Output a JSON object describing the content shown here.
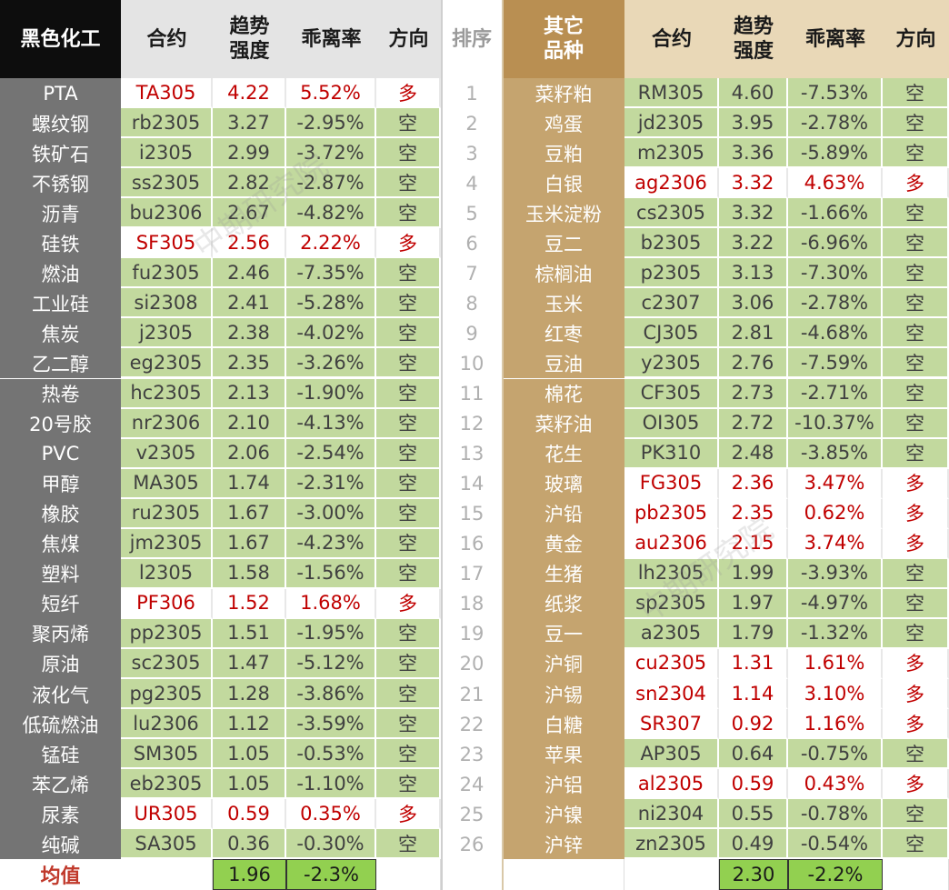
{
  "headers": {
    "left": [
      "黑色化工",
      "合约",
      "趋势\n强度",
      "乖离率",
      "方向"
    ],
    "rank": "排序",
    "right": [
      "其它\n品种",
      "合约",
      "趋势\n强度",
      "乖离率",
      "方向"
    ]
  },
  "left_rows": [
    {
      "name": "PTA",
      "contract": "TA305",
      "strength": "4.22",
      "dev": "5.52%",
      "dir": "多"
    },
    {
      "name": "螺纹钢",
      "contract": "rb2305",
      "strength": "3.27",
      "dev": "-2.95%",
      "dir": "空"
    },
    {
      "name": "铁矿石",
      "contract": "i2305",
      "strength": "2.99",
      "dev": "-3.72%",
      "dir": "空"
    },
    {
      "name": "不锈钢",
      "contract": "ss2305",
      "strength": "2.82",
      "dev": "-2.87%",
      "dir": "空"
    },
    {
      "name": "沥青",
      "contract": "bu2306",
      "strength": "2.67",
      "dev": "-4.82%",
      "dir": "空"
    },
    {
      "name": "硅铁",
      "contract": "SF305",
      "strength": "2.56",
      "dev": "2.22%",
      "dir": "多"
    },
    {
      "name": "燃油",
      "contract": "fu2305",
      "strength": "2.46",
      "dev": "-7.35%",
      "dir": "空"
    },
    {
      "name": "工业硅",
      "contract": "si2308",
      "strength": "2.41",
      "dev": "-5.28%",
      "dir": "空"
    },
    {
      "name": "焦炭",
      "contract": "j2305",
      "strength": "2.38",
      "dev": "-4.02%",
      "dir": "空"
    },
    {
      "name": "乙二醇",
      "contract": "eg2305",
      "strength": "2.35",
      "dev": "-3.26%",
      "dir": "空"
    },
    {
      "name": "热卷",
      "contract": "hc2305",
      "strength": "2.13",
      "dev": "-1.90%",
      "dir": "空"
    },
    {
      "name": "20号胶",
      "contract": "nr2306",
      "strength": "2.10",
      "dev": "-4.13%",
      "dir": "空"
    },
    {
      "name": "PVC",
      "contract": "v2305",
      "strength": "2.06",
      "dev": "-2.54%",
      "dir": "空"
    },
    {
      "name": "甲醇",
      "contract": "MA305",
      "strength": "1.74",
      "dev": "-2.31%",
      "dir": "空"
    },
    {
      "name": "橡胶",
      "contract": "ru2305",
      "strength": "1.67",
      "dev": "-3.00%",
      "dir": "空"
    },
    {
      "name": "焦煤",
      "contract": "jm2305",
      "strength": "1.67",
      "dev": "-4.23%",
      "dir": "空"
    },
    {
      "name": "塑料",
      "contract": "l2305",
      "strength": "1.58",
      "dev": "-1.56%",
      "dir": "空"
    },
    {
      "name": "短纤",
      "contract": "PF306",
      "strength": "1.52",
      "dev": "1.68%",
      "dir": "多"
    },
    {
      "name": "聚丙烯",
      "contract": "pp2305",
      "strength": "1.51",
      "dev": "-1.95%",
      "dir": "空"
    },
    {
      "name": "原油",
      "contract": "sc2305",
      "strength": "1.47",
      "dev": "-5.12%",
      "dir": "空"
    },
    {
      "name": "液化气",
      "contract": "pg2305",
      "strength": "1.28",
      "dev": "-3.86%",
      "dir": "空"
    },
    {
      "name": "低硫燃油",
      "contract": "lu2306",
      "strength": "1.12",
      "dev": "-3.59%",
      "dir": "空"
    },
    {
      "name": "锰硅",
      "contract": "SM305",
      "strength": "1.05",
      "dev": "-0.53%",
      "dir": "空"
    },
    {
      "name": "苯乙烯",
      "contract": "eb2305",
      "strength": "1.05",
      "dev": "-1.10%",
      "dir": "空"
    },
    {
      "name": "尿素",
      "contract": "UR305",
      "strength": "0.59",
      "dev": "0.35%",
      "dir": "多"
    },
    {
      "name": "纯碱",
      "contract": "SA305",
      "strength": "0.36",
      "dev": "-0.30%",
      "dir": "空"
    }
  ],
  "right_rows": [
    {
      "name": "菜籽粕",
      "contract": "RM305",
      "strength": "4.60",
      "dev": "-7.53%",
      "dir": "空"
    },
    {
      "name": "鸡蛋",
      "contract": "jd2305",
      "strength": "3.95",
      "dev": "-2.78%",
      "dir": "空"
    },
    {
      "name": "豆粕",
      "contract": "m2305",
      "strength": "3.36",
      "dev": "-5.89%",
      "dir": "空"
    },
    {
      "name": "白银",
      "contract": "ag2306",
      "strength": "3.32",
      "dev": "4.63%",
      "dir": "多"
    },
    {
      "name": "玉米淀粉",
      "contract": "cs2305",
      "strength": "3.32",
      "dev": "-1.66%",
      "dir": "空"
    },
    {
      "name": "豆二",
      "contract": "b2305",
      "strength": "3.22",
      "dev": "-6.96%",
      "dir": "空"
    },
    {
      "name": "棕榈油",
      "contract": "p2305",
      "strength": "3.13",
      "dev": "-7.30%",
      "dir": "空"
    },
    {
      "name": "玉米",
      "contract": "c2307",
      "strength": "3.06",
      "dev": "-2.78%",
      "dir": "空"
    },
    {
      "name": "红枣",
      "contract": "CJ305",
      "strength": "2.81",
      "dev": "-4.68%",
      "dir": "空"
    },
    {
      "name": "豆油",
      "contract": "y2305",
      "strength": "2.76",
      "dev": "-7.59%",
      "dir": "空"
    },
    {
      "name": "棉花",
      "contract": "CF305",
      "strength": "2.73",
      "dev": "-2.71%",
      "dir": "空"
    },
    {
      "name": "菜籽油",
      "contract": "OI305",
      "strength": "2.72",
      "dev": "-10.37%",
      "dir": "空"
    },
    {
      "name": "花生",
      "contract": "PK310",
      "strength": "2.48",
      "dev": "-3.85%",
      "dir": "空"
    },
    {
      "name": "玻璃",
      "contract": "FG305",
      "strength": "2.36",
      "dev": "3.47%",
      "dir": "多"
    },
    {
      "name": "沪铅",
      "contract": "pb2305",
      "strength": "2.35",
      "dev": "0.62%",
      "dir": "多"
    },
    {
      "name": "黄金",
      "contract": "au2306",
      "strength": "2.15",
      "dev": "3.74%",
      "dir": "多"
    },
    {
      "name": "生猪",
      "contract": "lh2305",
      "strength": "1.99",
      "dev": "-3.93%",
      "dir": "空"
    },
    {
      "name": "纸浆",
      "contract": "sp2305",
      "strength": "1.97",
      "dev": "-4.97%",
      "dir": "空"
    },
    {
      "name": "豆一",
      "contract": "a2305",
      "strength": "1.79",
      "dev": "-1.32%",
      "dir": "空"
    },
    {
      "name": "沪铜",
      "contract": "cu2305",
      "strength": "1.31",
      "dev": "1.61%",
      "dir": "多"
    },
    {
      "name": "沪锡",
      "contract": "sn2304",
      "strength": "1.14",
      "dev": "3.10%",
      "dir": "多"
    },
    {
      "name": "白糖",
      "contract": "SR307",
      "strength": "0.92",
      "dev": "1.16%",
      "dir": "多"
    },
    {
      "name": "苹果",
      "contract": "AP305",
      "strength": "0.64",
      "dev": "-0.75%",
      "dir": "空"
    },
    {
      "name": "沪铝",
      "contract": "al2305",
      "strength": "0.59",
      "dev": "0.43%",
      "dir": "多"
    },
    {
      "name": "沪镍",
      "contract": "ni2304",
      "strength": "0.55",
      "dev": "-0.78%",
      "dir": "空"
    },
    {
      "name": "沪锌",
      "contract": "zn2305",
      "strength": "0.49",
      "dev": "-0.54%",
      "dir": "空"
    }
  ],
  "footer": {
    "label": "均值",
    "left_strength": "1.96",
    "left_dev": "-2.3%",
    "right_strength": "2.30",
    "right_dev": "-2.2%"
  },
  "watermark": "中期研究院",
  "colors": {
    "green": "#c2d99e",
    "red_text": "#c00000",
    "dark_name": "#747474",
    "gold_name": "#c5a46f",
    "avg_green": "#92d050"
  }
}
